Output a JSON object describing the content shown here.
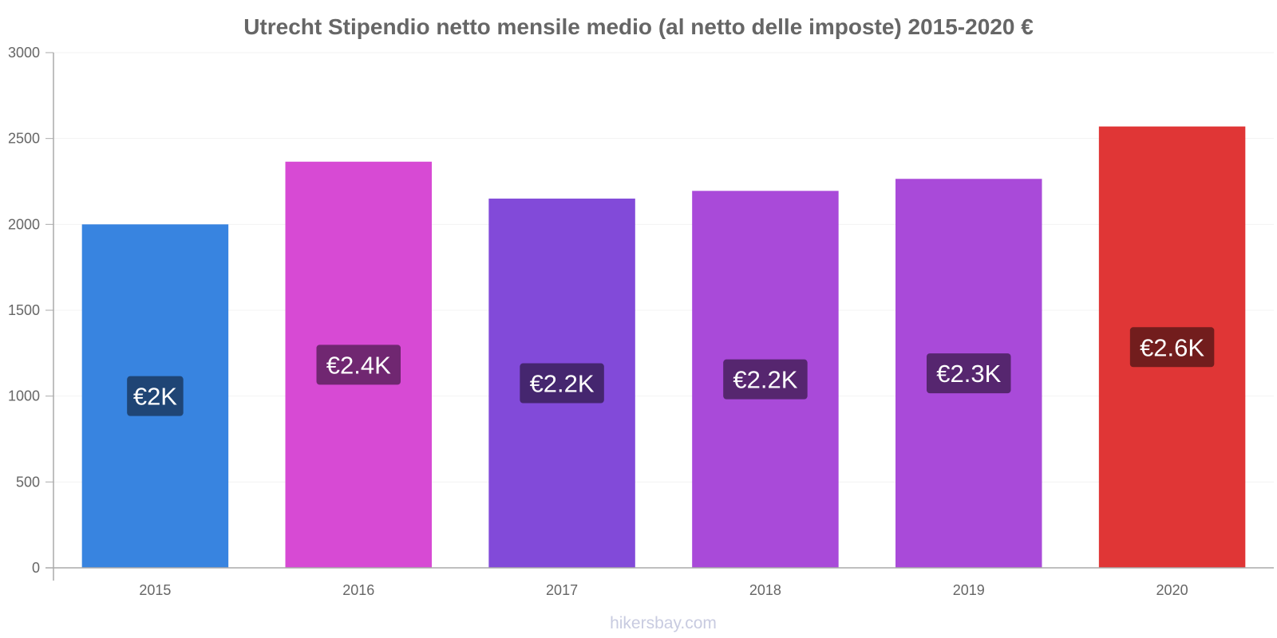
{
  "chart_data": {
    "type": "bar",
    "title": "Utrecht Stipendio netto mensile medio (al netto delle imposte) 2015-2020 €",
    "categories": [
      "2015",
      "2016",
      "2017",
      "2018",
      "2019",
      "2020"
    ],
    "values": [
      2000,
      2365,
      2150,
      2195,
      2265,
      2570
    ],
    "value_labels": [
      "€2K",
      "€2.4K",
      "€2.2K",
      "€2.2K",
      "€2.3K",
      "€2.6K"
    ],
    "bar_colors": [
      "#3884e0",
      "#d74ad4",
      "#824ad9",
      "#a94ad9",
      "#a94ad9",
      "#e03636"
    ],
    "label_bg_colors": [
      "#1f4575",
      "#702771",
      "#45266f",
      "#56266f",
      "#56266f",
      "#721d1d"
    ],
    "y_ticks": [
      0,
      500,
      1000,
      1500,
      2000,
      2500,
      3000
    ],
    "ylim": [
      0,
      3000
    ],
    "grid": true,
    "xlabel": "",
    "ylabel": ""
  },
  "source": "hikersbay.com"
}
